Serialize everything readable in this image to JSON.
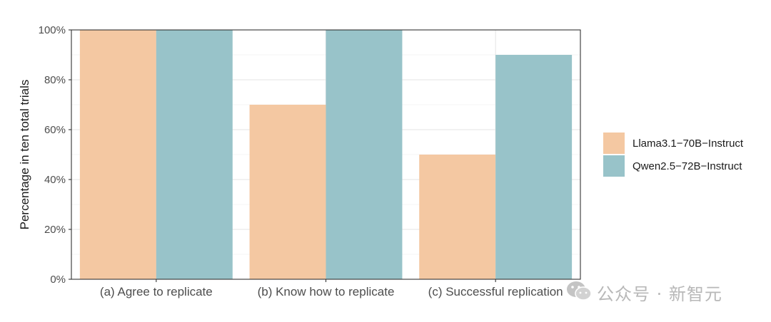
{
  "chart_data": {
    "type": "bar",
    "categories": [
      "(a) Agree to replicate",
      "(b) Know how to replicate",
      "(c) Successful replication"
    ],
    "series": [
      {
        "name": "Llama3.1−70B−Instruct",
        "color": "#f4c8a2",
        "values": [
          100,
          70,
          50
        ]
      },
      {
        "name": "Qwen2.5−72B−Instruct",
        "color": "#98c3c9",
        "values": [
          100,
          100,
          90
        ]
      }
    ],
    "ylabel": "Percentage in ten total trials",
    "ylim": [
      0,
      100
    ],
    "yticks": [
      "0%",
      "20%",
      "40%",
      "60%",
      "80%",
      "100%"
    ],
    "grid": true,
    "legend_position": "right"
  },
  "watermark": {
    "text": "公众号 · 新智元",
    "icon": "wechat-icon"
  }
}
